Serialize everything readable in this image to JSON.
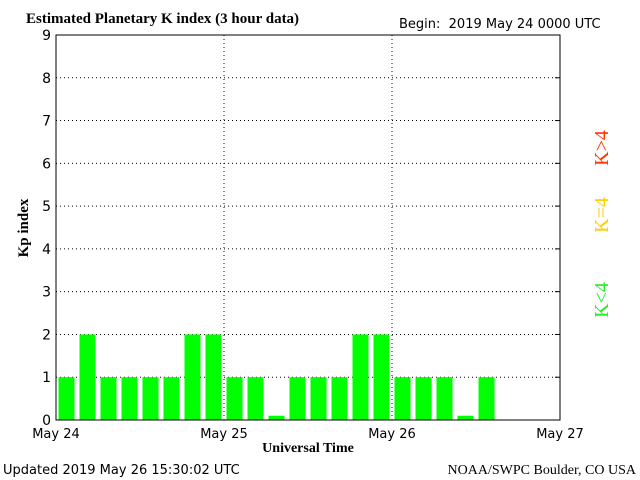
{
  "chart_data": {
    "type": "bar",
    "title": "Estimated Planetary K index (3 hour data)",
    "subtitle": "Begin:  2019 May 24 0000 UTC",
    "y_label": "Kp index",
    "x_label": "Universal Time",
    "footer_left": "Updated 2019 May 26 15:30:02 UTC",
    "footer_right": "NOAA/SWPC Boulder, CO USA",
    "color": "#00ff00",
    "x": [
      1.5,
      4.5,
      7.5,
      10.5,
      13.5,
      16.5,
      19.5,
      22.5,
      25.5,
      28.5,
      31.5,
      34.5,
      37.5,
      40.5,
      43.5,
      46.5,
      49.5,
      52.5,
      55.5,
      58.5,
      61.5
    ],
    "values": [
      1,
      2,
      1,
      1,
      1,
      1,
      2,
      2,
      1,
      1,
      0.1,
      1,
      1,
      1,
      2,
      2,
      1,
      1,
      1,
      0.1,
      1
    ],
    "xlim": [
      0,
      72
    ],
    "xticks": [
      {
        "value": 0,
        "label": "May 24"
      },
      {
        "value": 24,
        "label": "May 25"
      },
      {
        "value": 48,
        "label": "May 26"
      },
      {
        "value": 72,
        "label": "May 27"
      }
    ],
    "ylim": [
      0,
      9
    ],
    "yticks": [
      0,
      1,
      2,
      3,
      4,
      5,
      6,
      7,
      8,
      9
    ],
    "grid": true,
    "legend": [
      {
        "name": "K<4",
        "color": "#22ee22"
      },
      {
        "name": "K=4",
        "color": "#ffcc00"
      },
      {
        "name": "K>4",
        "color": "#ff3300"
      }
    ]
  }
}
